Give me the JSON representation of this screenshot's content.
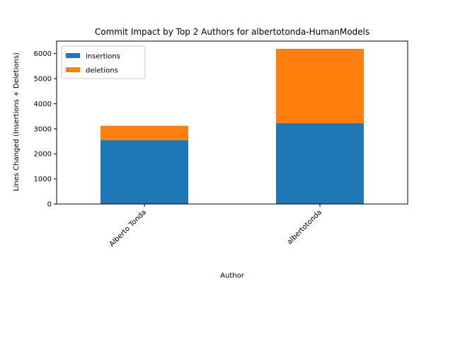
{
  "chart_data": {
    "type": "bar",
    "stacked": true,
    "title": "Commit Impact by Top 2 Authors for albertotonda-HumanModels",
    "xlabel": "Author",
    "ylabel": "Lines Changed (Insertions + Deletions)",
    "categories": [
      "Alberto Tonda",
      "albertotonda"
    ],
    "series": [
      {
        "name": "insertions",
        "values": [
          2550,
          3230
        ],
        "color": "#1f77b4"
      },
      {
        "name": "deletions",
        "values": [
          570,
          2960
        ],
        "color": "#ff7f0e"
      }
    ],
    "ylim": [
      0,
      6500
    ],
    "yticks": [
      0,
      1000,
      2000,
      3000,
      4000,
      5000,
      6000
    ],
    "grid": false,
    "legend_position": "top-left"
  }
}
